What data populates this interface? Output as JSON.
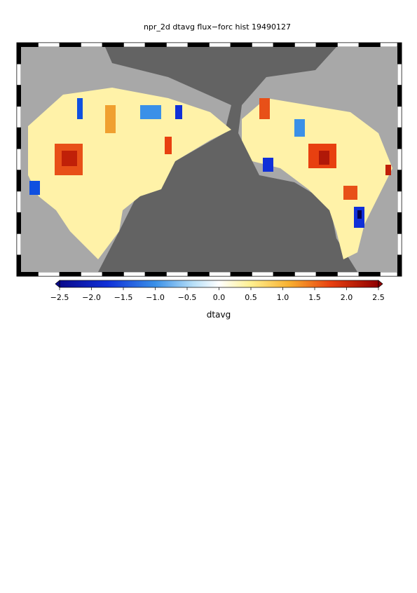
{
  "title": "npr_2d dtavg flux−forc hist 19490127",
  "colorbar": {
    "label": "dtavg",
    "lim": [
      -2.5,
      2.5
    ],
    "ticks": [
      {
        "value": -2.5,
        "label": "−2.5"
      },
      {
        "value": -2.0,
        "label": "−2.0"
      },
      {
        "value": -1.5,
        "label": "−1.5"
      },
      {
        "value": -1.0,
        "label": "−1.0"
      },
      {
        "value": -0.5,
        "label": "−0.5"
      },
      {
        "value": 0,
        "label": "0.0"
      },
      0.5,
      {
        "value": 1,
        "label": "1.0"
      },
      1.5,
      {
        "value": 2,
        "label": "2.0"
      },
      2.5
    ]
  }
}
